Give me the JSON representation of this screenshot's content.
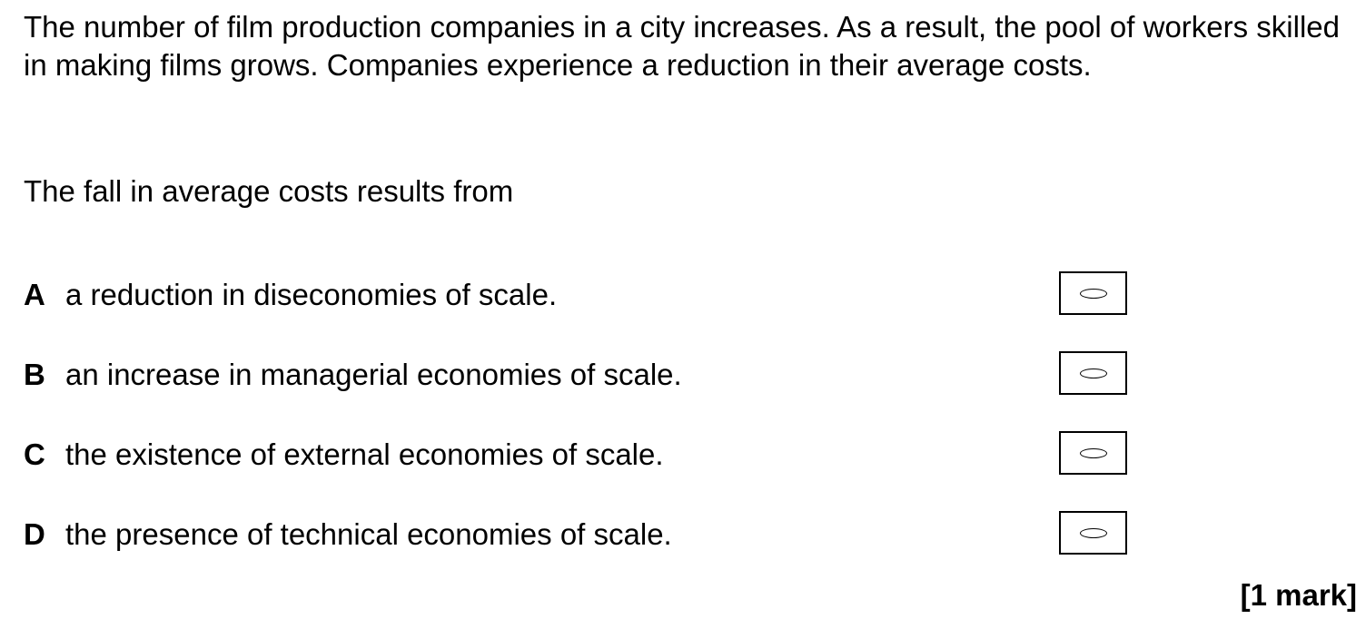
{
  "question": {
    "stem": "The number of film production companies in a city increases.  As a result, the pool of workers skilled in making films grows.  Companies experience a reduction in their average costs.",
    "prompt": "The fall in average costs results from"
  },
  "options": [
    {
      "letter": "A",
      "text": "a reduction in diseconomies of scale."
    },
    {
      "letter": "B",
      "text": "an increase in managerial economies of scale."
    },
    {
      "letter": "C",
      "text": "the existence of external economies of scale."
    },
    {
      "letter": "D",
      "text": "the presence of technical economies of scale."
    }
  ],
  "marks": "[1 mark]"
}
